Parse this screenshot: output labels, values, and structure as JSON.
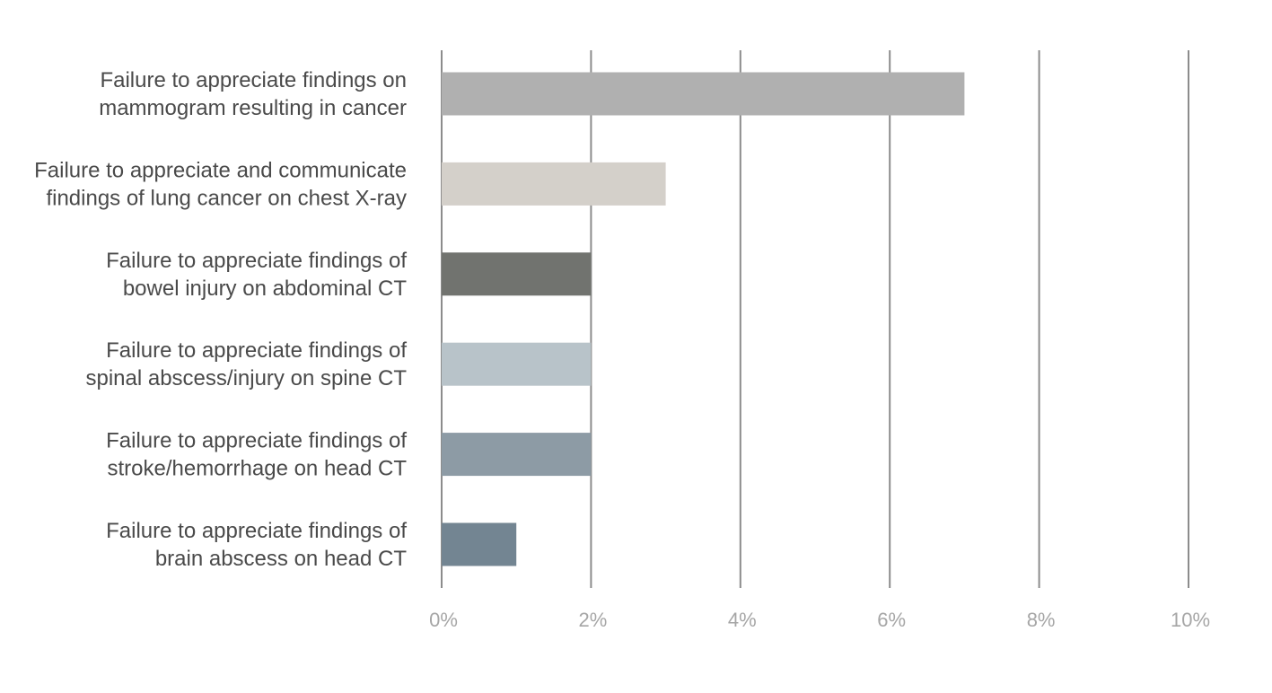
{
  "chart_data": {
    "type": "bar",
    "orientation": "horizontal",
    "title": "",
    "xlabel": "",
    "ylabel": "",
    "categories": [
      "Failure to appreciate findings on mammogram resulting in cancer",
      "Failure to appreciate and communicate findings of lung cancer on chest X-ray",
      "Failure to appreciate findings of bowel injury on abdominal CT",
      "Failure to appreciate findings of spinal abscess/injury on spine CT",
      "Failure to appreciate findings of stroke/hemorrhage on head CT",
      "Failure to appreciate findings of brain abscess on head CT"
    ],
    "category_lines": [
      [
        "Failure to appreciate findings on",
        "mammogram resulting in cancer"
      ],
      [
        "Failure to appreciate and communicate",
        "findings of lung cancer on chest X-ray"
      ],
      [
        "Failure to appreciate findings of",
        "bowel injury on abdominal CT"
      ],
      [
        "Failure to appreciate findings of",
        "spinal abscess/injury on spine CT"
      ],
      [
        "Failure to appreciate findings of",
        "stroke/hemorrhage on head CT"
      ],
      [
        "Failure to appreciate findings of",
        "brain abscess on head CT"
      ]
    ],
    "values": [
      7,
      3,
      2,
      2,
      2,
      1
    ],
    "colors": [
      "#b0b0b0",
      "#d4d0ca",
      "#71736f",
      "#b8c3c9",
      "#8d9ba5",
      "#738592"
    ],
    "xlim": [
      0,
      10
    ],
    "xticks": [
      0,
      2,
      4,
      6,
      8,
      10
    ],
    "xtick_labels": [
      "0%",
      "2%",
      "4%",
      "6%",
      "8%",
      "10%"
    ],
    "grid": true,
    "legend": "none"
  }
}
